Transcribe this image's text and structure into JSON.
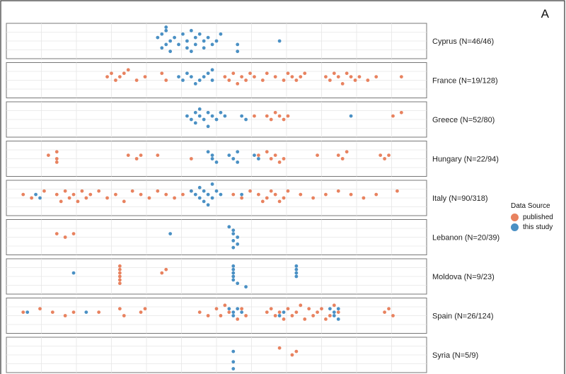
{
  "figure": {
    "panel_label": "A",
    "colors": {
      "published": "#E8825F",
      "this_study": "#4A90C4",
      "panel_border": "#777777",
      "grid": "#e6e6e6"
    }
  },
  "legend": {
    "title": "Data Source",
    "items": [
      {
        "key": "published",
        "label": "published"
      },
      {
        "key": "this_study",
        "label": "this study"
      }
    ]
  },
  "chart_data": {
    "type": "scatter",
    "subtype": "beeswarm",
    "title": "",
    "xlabel": "",
    "ylabel": "",
    "grid": true,
    "legend_position": "right",
    "xlim": [
      0,
      100
    ],
    "facets": [
      {
        "label": "Cyprus (N=46/46)",
        "published": [],
        "this_study": [
          [
            36,
            4
          ],
          [
            37,
            7
          ],
          [
            37,
            3
          ],
          [
            38,
            6
          ],
          [
            38,
            1
          ],
          [
            38,
            2
          ],
          [
            39,
            5
          ],
          [
            39,
            8
          ],
          [
            40,
            4
          ],
          [
            41,
            6
          ],
          [
            42,
            3
          ],
          [
            43,
            7
          ],
          [
            43,
            5
          ],
          [
            44,
            2
          ],
          [
            44,
            8
          ],
          [
            45,
            4
          ],
          [
            45,
            6
          ],
          [
            46,
            3
          ],
          [
            47,
            7
          ],
          [
            47,
            5
          ],
          [
            48,
            4
          ],
          [
            49,
            6
          ],
          [
            50,
            5
          ],
          [
            51,
            3
          ],
          [
            55,
            6
          ],
          [
            55,
            8
          ],
          [
            65,
            5
          ]
        ]
      },
      {
        "label": "France (N=19/128)",
        "published": [
          [
            24,
            4
          ],
          [
            25,
            3
          ],
          [
            26,
            5
          ],
          [
            27,
            4
          ],
          [
            28,
            3
          ],
          [
            29,
            2
          ],
          [
            31,
            5
          ],
          [
            33,
            4
          ],
          [
            37,
            3
          ],
          [
            38,
            5
          ],
          [
            52,
            4
          ],
          [
            53,
            5
          ],
          [
            54,
            3
          ],
          [
            55,
            6
          ],
          [
            56,
            4
          ],
          [
            57,
            5
          ],
          [
            58,
            3
          ],
          [
            59,
            4
          ],
          [
            61,
            5
          ],
          [
            62,
            3
          ],
          [
            64,
            4
          ],
          [
            66,
            5
          ],
          [
            67,
            3
          ],
          [
            68,
            4
          ],
          [
            69,
            5
          ],
          [
            70,
            4
          ],
          [
            71,
            3
          ],
          [
            76,
            4
          ],
          [
            77,
            5
          ],
          [
            78,
            3
          ],
          [
            79,
            4
          ],
          [
            80,
            6
          ],
          [
            81,
            3
          ],
          [
            82,
            4
          ],
          [
            83,
            5
          ],
          [
            84,
            4
          ],
          [
            86,
            5
          ],
          [
            88,
            4
          ],
          [
            94,
            4
          ]
        ],
        "this_study": [
          [
            41,
            4
          ],
          [
            42,
            5
          ],
          [
            43,
            3
          ],
          [
            44,
            4
          ],
          [
            45,
            6
          ],
          [
            46,
            5
          ],
          [
            47,
            4
          ],
          [
            48,
            3
          ],
          [
            49,
            5
          ],
          [
            49,
            2
          ]
        ]
      },
      {
        "label": "Greece (N=52/80)",
        "published": [
          [
            59,
            4
          ],
          [
            62,
            4
          ],
          [
            63,
            5
          ],
          [
            64,
            3
          ],
          [
            65,
            4
          ],
          [
            66,
            5
          ],
          [
            67,
            4
          ],
          [
            92,
            4
          ],
          [
            94,
            3
          ]
        ],
        "this_study": [
          [
            43,
            4
          ],
          [
            44,
            5
          ],
          [
            45,
            3
          ],
          [
            45,
            6
          ],
          [
            46,
            4
          ],
          [
            46,
            2
          ],
          [
            47,
            5
          ],
          [
            48,
            3
          ],
          [
            48,
            7
          ],
          [
            49,
            4
          ],
          [
            50,
            5
          ],
          [
            51,
            3
          ],
          [
            52,
            4
          ],
          [
            56,
            4
          ],
          [
            57,
            5
          ],
          [
            82,
            4
          ]
        ]
      },
      {
        "label": "Hungary (N=22/94)",
        "published": [
          [
            10,
            4
          ],
          [
            12,
            3
          ],
          [
            12,
            5
          ],
          [
            12,
            6
          ],
          [
            29,
            4
          ],
          [
            31,
            5
          ],
          [
            32,
            4
          ],
          [
            36,
            4
          ],
          [
            44,
            5
          ],
          [
            60,
            4
          ],
          [
            62,
            3
          ],
          [
            63,
            5
          ],
          [
            64,
            4
          ],
          [
            65,
            6
          ],
          [
            66,
            5
          ],
          [
            74,
            4
          ],
          [
            79,
            4
          ],
          [
            80,
            5
          ],
          [
            81,
            3
          ],
          [
            89,
            4
          ],
          [
            90,
            5
          ],
          [
            91,
            4
          ]
        ],
        "this_study": [
          [
            48,
            3
          ],
          [
            49,
            4
          ],
          [
            49,
            5
          ],
          [
            50,
            6
          ],
          [
            53,
            4
          ],
          [
            54,
            5
          ],
          [
            55,
            3
          ],
          [
            55,
            6
          ],
          [
            59,
            4
          ],
          [
            60,
            5
          ]
        ]
      },
      {
        "label": "Italy (N=90/318)",
        "published": [
          [
            4,
            4
          ],
          [
            6,
            5
          ],
          [
            9,
            3
          ],
          [
            12,
            4
          ],
          [
            13,
            6
          ],
          [
            14,
            3
          ],
          [
            15,
            5
          ],
          [
            16,
            4
          ],
          [
            17,
            6
          ],
          [
            18,
            3
          ],
          [
            19,
            5
          ],
          [
            20,
            4
          ],
          [
            22,
            3
          ],
          [
            24,
            5
          ],
          [
            26,
            4
          ],
          [
            28,
            6
          ],
          [
            30,
            3
          ],
          [
            32,
            4
          ],
          [
            34,
            5
          ],
          [
            36,
            3
          ],
          [
            38,
            4
          ],
          [
            40,
            5
          ],
          [
            42,
            4
          ],
          [
            44,
            3
          ],
          [
            54,
            4
          ],
          [
            56,
            5
          ],
          [
            58,
            3
          ],
          [
            60,
            4
          ],
          [
            61,
            6
          ],
          [
            62,
            5
          ],
          [
            63,
            3
          ],
          [
            64,
            4
          ],
          [
            65,
            6
          ],
          [
            66,
            5
          ],
          [
            67,
            3
          ],
          [
            70,
            4
          ],
          [
            73,
            5
          ],
          [
            76,
            4
          ],
          [
            79,
            3
          ],
          [
            82,
            4
          ],
          [
            85,
            5
          ],
          [
            88,
            4
          ],
          [
            93,
            3
          ]
        ],
        "this_study": [
          [
            7,
            4
          ],
          [
            8,
            5
          ],
          [
            44,
            3
          ],
          [
            45,
            4
          ],
          [
            46,
            5
          ],
          [
            46,
            2
          ],
          [
            47,
            6
          ],
          [
            47,
            3
          ],
          [
            48,
            4
          ],
          [
            48,
            7
          ],
          [
            49,
            5
          ],
          [
            49,
            1
          ],
          [
            50,
            3
          ],
          [
            51,
            4
          ],
          [
            56,
            4
          ]
        ]
      },
      {
        "label": "Lebanon (N=20/39)",
        "published": [
          [
            12,
            4
          ],
          [
            14,
            5
          ],
          [
            16,
            4
          ]
        ],
        "this_study": [
          [
            39,
            4
          ],
          [
            53,
            2
          ],
          [
            54,
            3
          ],
          [
            54,
            4
          ],
          [
            55,
            5
          ],
          [
            54,
            6
          ],
          [
            55,
            7
          ],
          [
            54,
            8
          ]
        ]
      },
      {
        "label": "Moldova (N=9/23)",
        "published": [
          [
            27,
            2
          ],
          [
            27,
            3
          ],
          [
            27,
            4
          ],
          [
            27,
            5
          ],
          [
            27,
            6
          ],
          [
            27,
            7
          ],
          [
            37,
            4
          ],
          [
            38,
            3
          ]
        ],
        "this_study": [
          [
            16,
            4
          ],
          [
            54,
            2
          ],
          [
            54,
            3
          ],
          [
            54,
            4
          ],
          [
            54,
            5
          ],
          [
            54,
            6
          ],
          [
            55,
            7
          ],
          [
            57,
            8
          ],
          [
            69,
            2
          ],
          [
            69,
            3
          ],
          [
            69,
            4
          ],
          [
            69,
            5
          ]
        ]
      },
      {
        "label": "Spain (N=26/124)",
        "published": [
          [
            4,
            4
          ],
          [
            8,
            3
          ],
          [
            11,
            4
          ],
          [
            14,
            5
          ],
          [
            16,
            4
          ],
          [
            22,
            4
          ],
          [
            27,
            3
          ],
          [
            28,
            5
          ],
          [
            32,
            4
          ],
          [
            33,
            3
          ],
          [
            46,
            4
          ],
          [
            48,
            5
          ],
          [
            50,
            3
          ],
          [
            51,
            5
          ],
          [
            52,
            2
          ],
          [
            53,
            4
          ],
          [
            55,
            6
          ],
          [
            56,
            3
          ],
          [
            57,
            5
          ],
          [
            62,
            4
          ],
          [
            63,
            3
          ],
          [
            64,
            5
          ],
          [
            65,
            4
          ],
          [
            66,
            6
          ],
          [
            67,
            3
          ],
          [
            68,
            5
          ],
          [
            69,
            4
          ],
          [
            70,
            2
          ],
          [
            71,
            6
          ],
          [
            72,
            3
          ],
          [
            73,
            5
          ],
          [
            74,
            4
          ],
          [
            75,
            3
          ],
          [
            76,
            6
          ],
          [
            77,
            5
          ],
          [
            78,
            2
          ],
          [
            79,
            4
          ],
          [
            90,
            4
          ],
          [
            91,
            3
          ],
          [
            92,
            5
          ]
        ],
        "this_study": [
          [
            5,
            4
          ],
          [
            19,
            4
          ],
          [
            53,
            3
          ],
          [
            54,
            4
          ],
          [
            54,
            5
          ],
          [
            55,
            3
          ],
          [
            56,
            4
          ],
          [
            65,
            5
          ],
          [
            66,
            4
          ],
          [
            77,
            3
          ],
          [
            78,
            4
          ],
          [
            78,
            5
          ],
          [
            79,
            3
          ],
          [
            79,
            6
          ]
        ]
      },
      {
        "label": "Syria (N=5/9)",
        "published": [
          [
            65,
            3
          ],
          [
            68,
            5
          ],
          [
            69,
            4
          ]
        ],
        "this_study": [
          [
            54,
            4
          ],
          [
            54,
            7
          ],
          [
            54,
            9
          ]
        ]
      }
    ]
  }
}
